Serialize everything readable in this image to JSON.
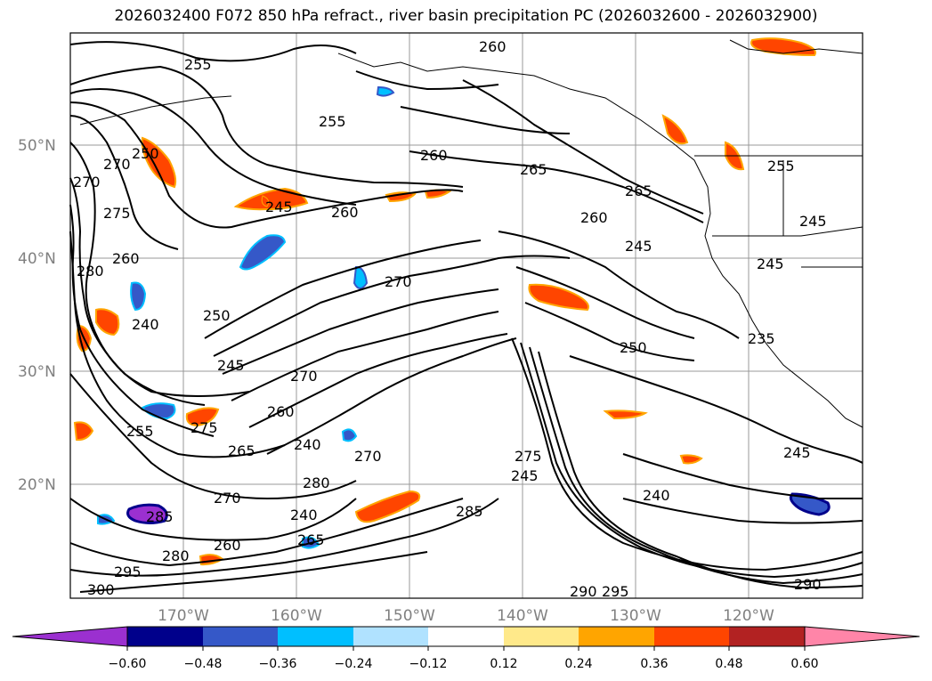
{
  "title": "2026032400 F072 850 hPa refract., river basin precipitation PC (2026032600 - 2026032900)",
  "lat_labels": [
    "50°N",
    "40°N",
    "30°N",
    "20°N"
  ],
  "lon_labels": [
    "170°W",
    "160°W",
    "150°W",
    "140°W",
    "130°W",
    "120°W"
  ],
  "contour_labels": [
    "255",
    "260",
    "265",
    "255",
    "260",
    "270",
    "275",
    "270",
    "250",
    "245",
    "260",
    "265",
    "260",
    "245",
    "280",
    "260",
    "240",
    "250",
    "245",
    "270",
    "270",
    "260",
    "250",
    "255",
    "275",
    "265",
    "240",
    "270",
    "285",
    "245",
    "270",
    "280",
    "240",
    "265",
    "295",
    "260",
    "280",
    "300",
    "285",
    "290",
    "295",
    "275",
    "240",
    "245",
    "245",
    "255",
    "245",
    "235",
    "290"
  ],
  "colorbar": {
    "ticks": [
      "−0.60",
      "−0.48",
      "−0.36",
      "−0.24",
      "−0.12",
      "0.12",
      "0.24",
      "0.36",
      "0.48",
      "0.60"
    ],
    "colors": [
      "#9b30d0",
      "#00008b",
      "#3558c8",
      "#00bfff",
      "#b0e2ff",
      "#ffffff",
      "#ffe98a",
      "#ffa500",
      "#ff4500",
      "#b22222",
      "#ff85a8"
    ]
  }
}
